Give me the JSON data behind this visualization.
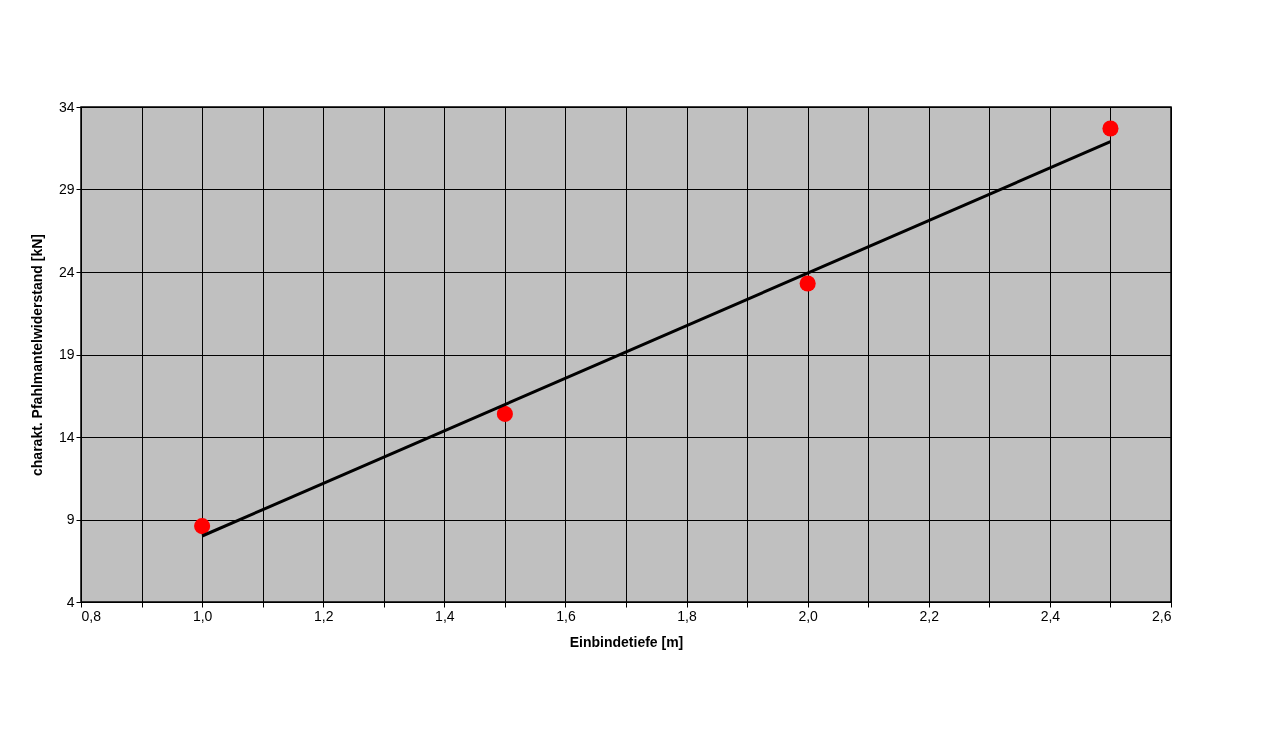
{
  "chart_data": {
    "type": "scatter",
    "xlabel": "Einbindetiefe [m]",
    "ylabel": "charakt. Pfahlmantelwiderstand [kN]",
    "xlim": [
      0.8,
      2.6
    ],
    "xticks": [
      {
        "value": 0.8,
        "label": "0,8"
      },
      {
        "value": 0.9,
        "label": null
      },
      {
        "value": 1.0,
        "label": "1,0"
      },
      {
        "value": 1.1,
        "label": null
      },
      {
        "value": 1.2,
        "label": "1,2"
      },
      {
        "value": 1.3,
        "label": null
      },
      {
        "value": 1.4,
        "label": "1,4"
      },
      {
        "value": 1.5,
        "label": null
      },
      {
        "value": 1.6,
        "label": "1,6"
      },
      {
        "value": 1.7,
        "label": null
      },
      {
        "value": 1.8,
        "label": "1,8"
      },
      {
        "value": 1.9,
        "label": null
      },
      {
        "value": 2.0,
        "label": "2,0"
      },
      {
        "value": 2.1,
        "label": null
      },
      {
        "value": 2.2,
        "label": "2,2"
      },
      {
        "value": 2.3,
        "label": null
      },
      {
        "value": 2.4,
        "label": "2,4"
      },
      {
        "value": 2.5,
        "label": null
      },
      {
        "value": 2.6,
        "label": "2,6"
      }
    ],
    "ylim": [
      4,
      34
    ],
    "yticks": [
      4,
      9,
      14,
      19,
      24,
      29,
      34
    ],
    "grid": true,
    "series": [
      {
        "color": "#ff0000",
        "marker": "circle",
        "x": [
          1.0,
          1.5,
          2.0,
          2.5
        ],
        "values": [
          8.6,
          15.4,
          23.3,
          32.7
        ]
      },
      {
        "type": "line",
        "marker": "none",
        "color": "#000000",
        "x": [
          1.0,
          2.5
        ],
        "values": [
          8.0,
          31.9
        ]
      }
    ]
  }
}
